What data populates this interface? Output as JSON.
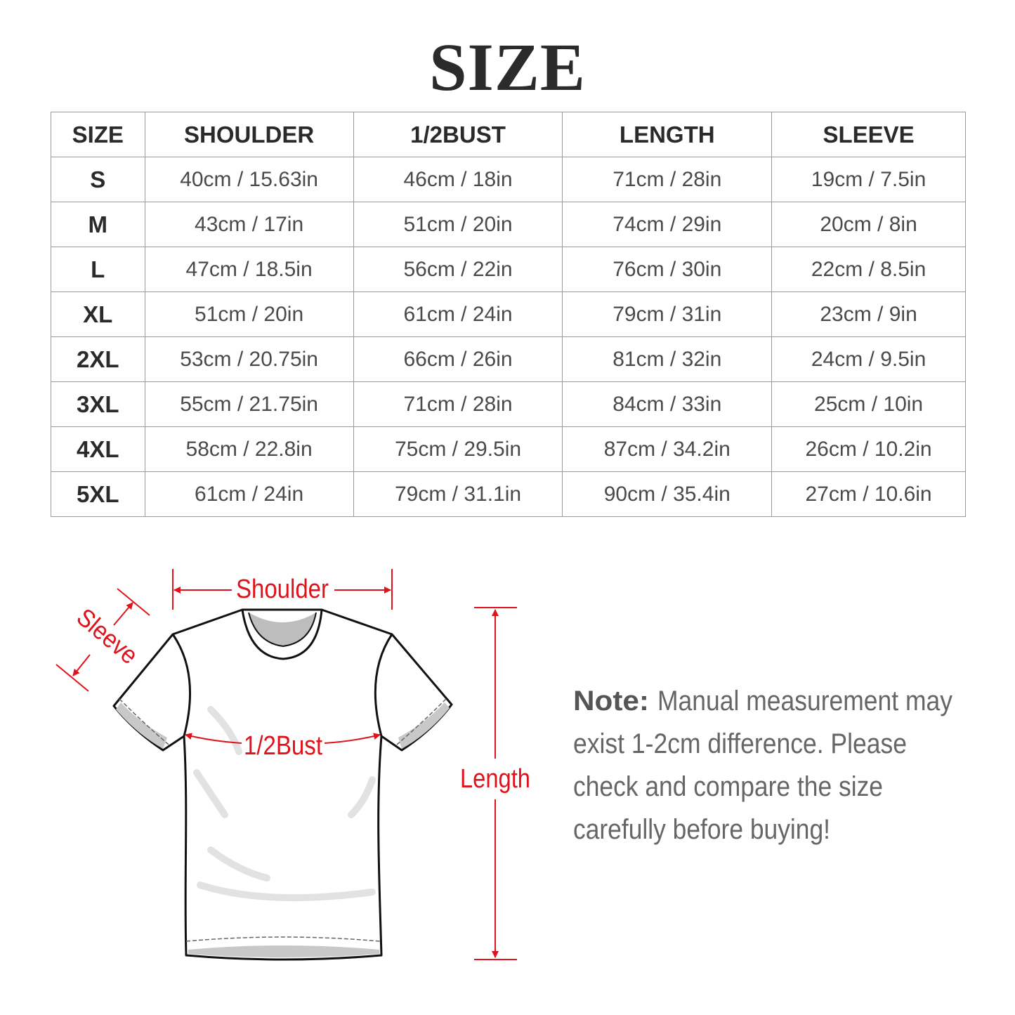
{
  "title": "SIZE",
  "table": {
    "headers": [
      "SIZE",
      "SHOULDER",
      "1/2BUST",
      "LENGTH",
      "SLEEVE"
    ],
    "rows": [
      [
        "S",
        "40cm / 15.63in",
        "46cm / 18in",
        "71cm / 28in",
        "19cm / 7.5in"
      ],
      [
        "M",
        "43cm / 17in",
        "51cm / 20in",
        "74cm / 29in",
        "20cm / 8in"
      ],
      [
        "L",
        "47cm / 18.5in",
        "56cm / 22in",
        "76cm / 30in",
        "22cm / 8.5in"
      ],
      [
        "XL",
        "51cm / 20in",
        "61cm / 24in",
        "79cm / 31in",
        "23cm / 9in"
      ],
      [
        "2XL",
        "53cm / 20.75in",
        "66cm / 26in",
        "81cm / 32in",
        "24cm / 9.5in"
      ],
      [
        "3XL",
        "55cm / 21.75in",
        "71cm / 28in",
        "84cm / 33in",
        "25cm / 10in"
      ],
      [
        "4XL",
        "58cm / 22.8in",
        "75cm / 29.5in",
        "87cm / 34.2in",
        "26cm / 10.2in"
      ],
      [
        "5XL",
        "61cm / 24in",
        "79cm / 31.1in",
        "90cm / 35.4in",
        "27cm / 10.6in"
      ]
    ]
  },
  "diagram": {
    "shoulder": "Shoulder",
    "sleeve": "Sleeve",
    "bust": "1/2Bust",
    "length": "Length",
    "accent_color": "#e0121b"
  },
  "note": {
    "label": "Note:",
    "lines": [
      "Manual measurement may",
      "exist 1-2cm difference. Please",
      "check and compare the size",
      "carefully before buying!"
    ]
  }
}
